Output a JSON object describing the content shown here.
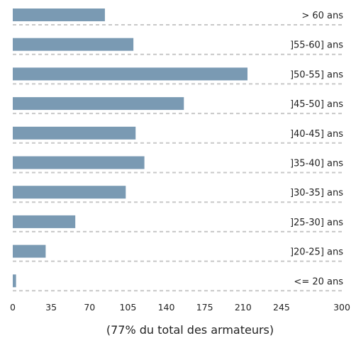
{
  "chart_data": {
    "type": "bar",
    "orientation": "horizontal",
    "categories": [
      "> 60 ans",
      "]55-60] ans",
      "]50-55] ans",
      "]45-50] ans",
      "]40-45] ans",
      "]35-40] ans",
      "]30-35] ans",
      "]25-30] ans",
      "]20-25] ans",
      "<= 20 ans"
    ],
    "values": [
      84,
      110,
      214,
      156,
      112,
      120,
      103,
      57,
      30,
      3
    ],
    "xticks": [
      0,
      35,
      70,
      105,
      140,
      175,
      210,
      245,
      300
    ],
    "xlim": [
      0,
      300
    ],
    "caption": "(77% du total des armateurs)",
    "bar_color": "#7a9ab3",
    "grid": "dashed separators below each bar",
    "title": "",
    "xlabel": "",
    "ylabel": ""
  }
}
